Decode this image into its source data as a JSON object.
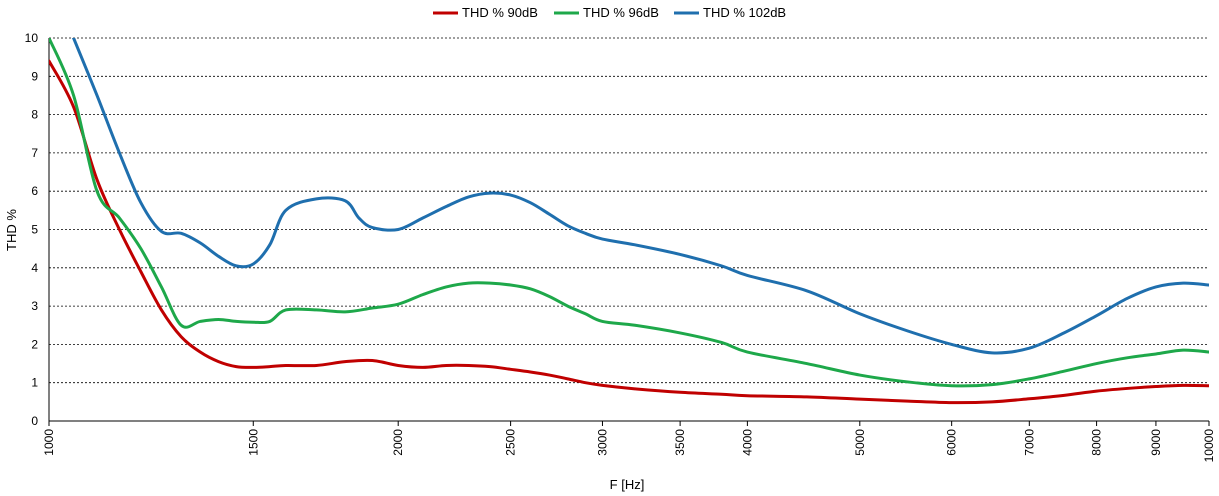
{
  "chart_data": {
    "type": "line",
    "xlabel": "F [Hz]",
    "ylabel": "THD %",
    "xscale": "log",
    "xlim": [
      1000,
      10000
    ],
    "ylim": [
      0,
      10
    ],
    "x_ticks": [
      1000,
      1500,
      2000,
      2500,
      3000,
      3500,
      4000,
      5000,
      6000,
      7000,
      8000,
      9000,
      10000
    ],
    "x_tick_labels": [
      "1000",
      "1500",
      "2000",
      "2500",
      "3000",
      "3500",
      "4000",
      "5000",
      "6000",
      "7000",
      "8000",
      "9000",
      "10000"
    ],
    "y_ticks": [
      0,
      1,
      2,
      3,
      4,
      5,
      6,
      7,
      8,
      9,
      10
    ],
    "y_tick_labels": [
      "0",
      "1",
      "2",
      "3",
      "4",
      "5",
      "6",
      "7",
      "8",
      "9",
      "10"
    ],
    "grid": "horizontal dashed",
    "legend_position": "top",
    "series": [
      {
        "name": "THD % 90dB",
        "color": "#c00000",
        "x": [
          1000,
          1050,
          1100,
          1150,
          1200,
          1250,
          1300,
          1350,
          1400,
          1450,
          1500,
          1550,
          1600,
          1700,
          1800,
          1900,
          2000,
          2100,
          2200,
          2300,
          2400,
          2500,
          2600,
          2700,
          2800,
          2900,
          3000,
          3200,
          3500,
          3800,
          4000,
          4500,
          5000,
          5500,
          6000,
          6500,
          7000,
          7500,
          8000,
          8500,
          9000,
          9500,
          10000
        ],
        "y": [
          9.4,
          8.2,
          6.3,
          5.0,
          3.9,
          2.9,
          2.2,
          1.8,
          1.55,
          1.42,
          1.4,
          1.42,
          1.45,
          1.45,
          1.55,
          1.58,
          1.45,
          1.4,
          1.45,
          1.45,
          1.42,
          1.35,
          1.28,
          1.2,
          1.1,
          1.0,
          0.93,
          0.84,
          0.75,
          0.7,
          0.66,
          0.63,
          0.57,
          0.52,
          0.48,
          0.5,
          0.58,
          0.67,
          0.78,
          0.85,
          0.9,
          0.93,
          0.92
        ]
      },
      {
        "name": "THD % 96dB",
        "color": "#1ea84a",
        "x": [
          1000,
          1050,
          1100,
          1150,
          1200,
          1250,
          1300,
          1350,
          1400,
          1450,
          1500,
          1550,
          1600,
          1700,
          1800,
          1900,
          2000,
          2100,
          2200,
          2300,
          2400,
          2500,
          2600,
          2700,
          2800,
          2900,
          3000,
          3200,
          3500,
          3800,
          4000,
          4500,
          5000,
          5500,
          6000,
          6500,
          7000,
          7500,
          8000,
          8500,
          9000,
          9500,
          10000
        ],
        "y": [
          10.0,
          8.5,
          6.0,
          5.3,
          4.5,
          3.5,
          2.5,
          2.6,
          2.65,
          2.6,
          2.58,
          2.6,
          2.9,
          2.9,
          2.85,
          2.95,
          3.05,
          3.3,
          3.5,
          3.6,
          3.6,
          3.55,
          3.45,
          3.25,
          3.0,
          2.8,
          2.6,
          2.5,
          2.3,
          2.05,
          1.8,
          1.5,
          1.2,
          1.02,
          0.92,
          0.95,
          1.1,
          1.3,
          1.5,
          1.65,
          1.75,
          1.85,
          1.8
        ]
      },
      {
        "name": "THD % 102dB",
        "color": "#1f6fae",
        "x": [
          1050,
          1100,
          1150,
          1200,
          1250,
          1300,
          1350,
          1400,
          1450,
          1500,
          1550,
          1600,
          1700,
          1800,
          1850,
          1900,
          2000,
          2100,
          2200,
          2300,
          2400,
          2500,
          2600,
          2700,
          2800,
          2900,
          3000,
          3200,
          3500,
          3800,
          4000,
          4500,
          5000,
          5500,
          6000,
          6500,
          7000,
          7500,
          8000,
          8500,
          9000,
          9500,
          10000
        ],
        "y": [
          10.0,
          8.5,
          7.0,
          5.7,
          4.95,
          4.9,
          4.65,
          4.3,
          4.05,
          4.1,
          4.6,
          5.5,
          5.8,
          5.75,
          5.3,
          5.05,
          5.0,
          5.3,
          5.6,
          5.85,
          5.95,
          5.9,
          5.7,
          5.4,
          5.1,
          4.9,
          4.75,
          4.6,
          4.35,
          4.05,
          3.8,
          3.4,
          2.8,
          2.35,
          2.0,
          1.78,
          1.9,
          2.3,
          2.75,
          3.2,
          3.5,
          3.6,
          3.55
        ]
      }
    ]
  }
}
